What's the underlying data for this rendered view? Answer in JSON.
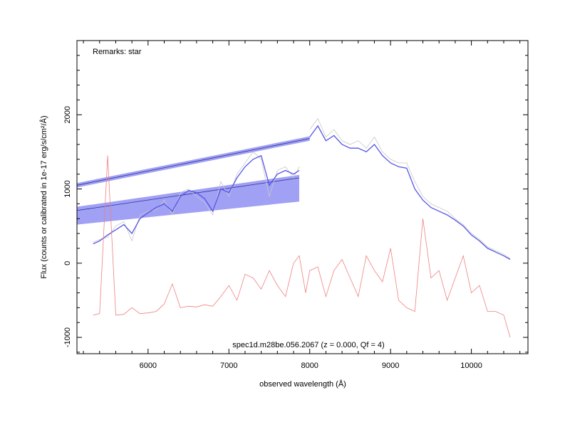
{
  "chart_data": {
    "type": "line",
    "remarks": "Remarks: star",
    "annotation": "spec1d.m28be.056.2067 (z = 0.000, Qf = 4)",
    "x_label": "observed wavelength (Å)",
    "y_label": "Flux (counts or calibrated in 1e-17 erg/s/cm²/Å)",
    "xlim": [
      5120,
      10700
    ],
    "ylim": [
      -1220,
      3000
    ],
    "xticks": [
      6000,
      7000,
      8000,
      9000,
      10000
    ],
    "yticks": [
      -1000,
      0,
      1000,
      2000
    ],
    "xminorticks": [
      5200,
      5400,
      5600,
      5800,
      6200,
      6400,
      6600,
      6800,
      7200,
      7400,
      7600,
      7800,
      8200,
      8400,
      8600,
      8800,
      9200,
      9400,
      9600,
      9800,
      10200,
      10400,
      10600
    ],
    "yminorticks": [
      -1200,
      -800,
      -600,
      -400,
      -200,
      200,
      400,
      600,
      800,
      1200,
      1400,
      1600,
      1800,
      2200,
      2400,
      2600,
      2800
    ],
    "x": [
      5320,
      5400,
      5500,
      5600,
      5700,
      5800,
      5900,
      6000,
      6100,
      6200,
      6300,
      6400,
      6500,
      6600,
      6700,
      6800,
      6900,
      7000,
      7100,
      7200,
      7300,
      7400,
      7500,
      7600,
      7700,
      7800,
      7870,
      7950,
      8000,
      8100,
      8200,
      8300,
      8400,
      8500,
      8600,
      8700,
      8800,
      8900,
      9000,
      9100,
      9200,
      9300,
      9400,
      9500,
      9600,
      9700,
      9800,
      9900,
      10000,
      10100,
      10200,
      10300,
      10400,
      10480
    ],
    "bands": [
      {
        "color": "#8080f0",
        "x": [
          5120,
          8000
        ],
        "lower": [
          1020,
          1650
        ],
        "upper": [
          1080,
          1710
        ],
        "center": [
          1050,
          1680
        ]
      },
      {
        "color": "#8080f0",
        "x": [
          5120,
          7870
        ],
        "lower": [
          520,
          830
        ],
        "upper": [
          760,
          1190
        ],
        "center": [
          710,
          1150
        ]
      }
    ],
    "series": [
      {
        "color": "#c8c8c8",
        "values": [
          280,
          320,
          350,
          500,
          560,
          300,
          650,
          700,
          720,
          850,
          650,
          950,
          1000,
          900,
          820,
          650,
          1100,
          900,
          1200,
          1350,
          1500,
          1400,
          900,
          1250,
          1300,
          1150,
          1300,
          null,
          1800,
          1950,
          1700,
          1800,
          1650,
          1600,
          1650,
          1550,
          1700,
          1500,
          1400,
          1350,
          1350,
          1100,
          900,
          800,
          750,
          700,
          600,
          520,
          400,
          320,
          220,
          170,
          120,
          60
        ]
      },
      {
        "color": "#5555e8",
        "values": [
          260,
          300,
          380,
          450,
          520,
          400,
          600,
          680,
          750,
          800,
          700,
          900,
          980,
          950,
          870,
          700,
          1000,
          950,
          1150,
          1300,
          1400,
          1450,
          1050,
          1200,
          1250,
          1200,
          1250,
          null,
          1700,
          1850,
          1650,
          1720,
          1600,
          1550,
          1550,
          1500,
          1600,
          1450,
          1350,
          1300,
          1280,
          1000,
          850,
          750,
          700,
          650,
          580,
          500,
          380,
          300,
          200,
          150,
          100,
          50
        ]
      },
      {
        "color": "#f08080",
        "values": [
          -700,
          -680,
          1450,
          -700,
          -690,
          -600,
          -680,
          -670,
          -650,
          -550,
          -280,
          -600,
          -580,
          -590,
          -560,
          -580,
          -450,
          -300,
          -500,
          -150,
          -200,
          -350,
          -100,
          -300,
          -450,
          0,
          100,
          -400,
          -100,
          -50,
          -450,
          -100,
          50,
          -200,
          -450,
          100,
          -100,
          -250,
          200,
          -500,
          -600,
          -650,
          600,
          -200,
          -100,
          -500,
          -200,
          100,
          -400,
          -300,
          -650,
          -650,
          -700,
          -1000
        ]
      }
    ]
  }
}
